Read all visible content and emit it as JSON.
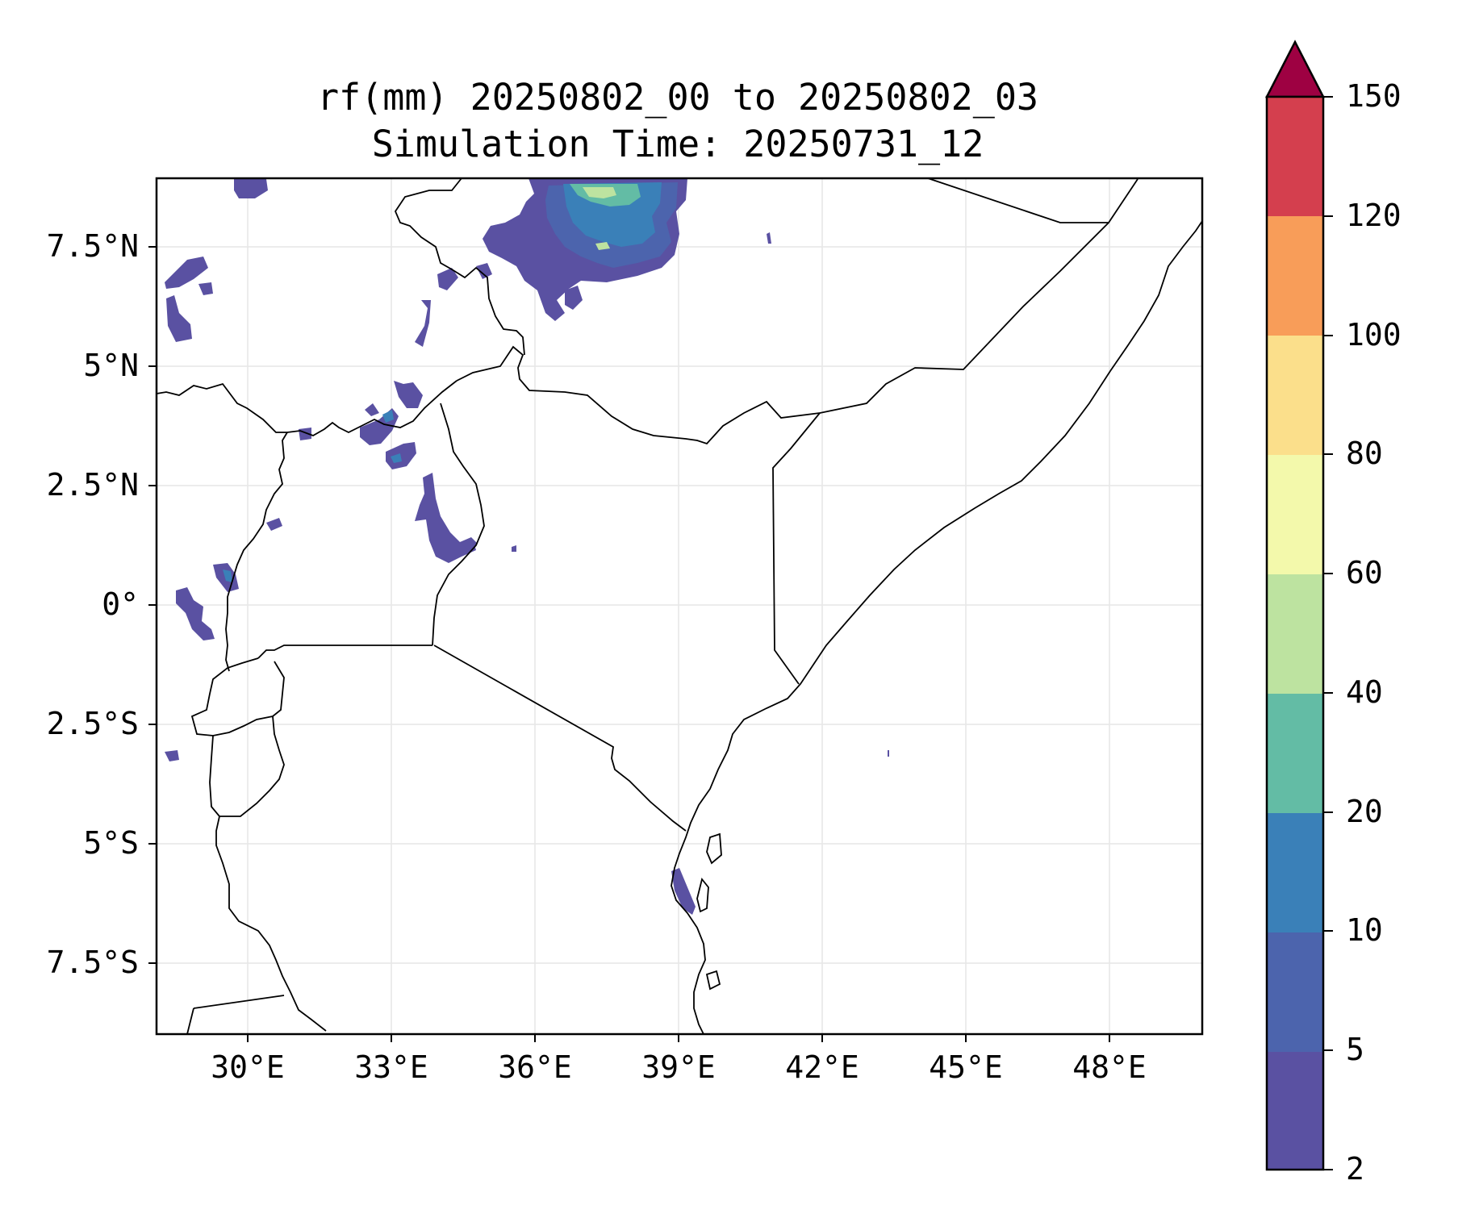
{
  "title": {
    "line1": "rf(mm) 20250802_00 to 20250802_03",
    "line2": "Simulation Time: 20250731_12"
  },
  "axes": {
    "x_ticks": [
      "30°E",
      "33°E",
      "36°E",
      "39°E",
      "42°E",
      "45°E",
      "48°E"
    ],
    "y_ticks": [
      "7.5°N",
      "5°N",
      "2.5°N",
      "0°",
      "2.5°S",
      "5°S",
      "7.5°S"
    ]
  },
  "colorbar": {
    "tick_labels": [
      "2",
      "5",
      "10",
      "20",
      "40",
      "60",
      "80",
      "100",
      "120",
      "150"
    ],
    "colors": [
      "#5a51a2",
      "#4c64ad",
      "#3a80b8",
      "#63bca5",
      "#bde3a0",
      "#f3f9ab",
      "#fbdf8b",
      "#f89d59",
      "#d43f4e"
    ],
    "extend_color": "#9e0142",
    "extend": "max"
  },
  "chart_data": {
    "type": "filled-contour-map",
    "variable": "rf(mm)",
    "x_range_deg_e": [
      28.1,
      49.9
    ],
    "y_range_deg_n": [
      -8.9,
      8.9
    ],
    "contour_levels_mm": [
      2,
      5,
      10,
      20,
      40,
      60,
      80,
      100,
      120,
      150
    ],
    "grid": true
  }
}
